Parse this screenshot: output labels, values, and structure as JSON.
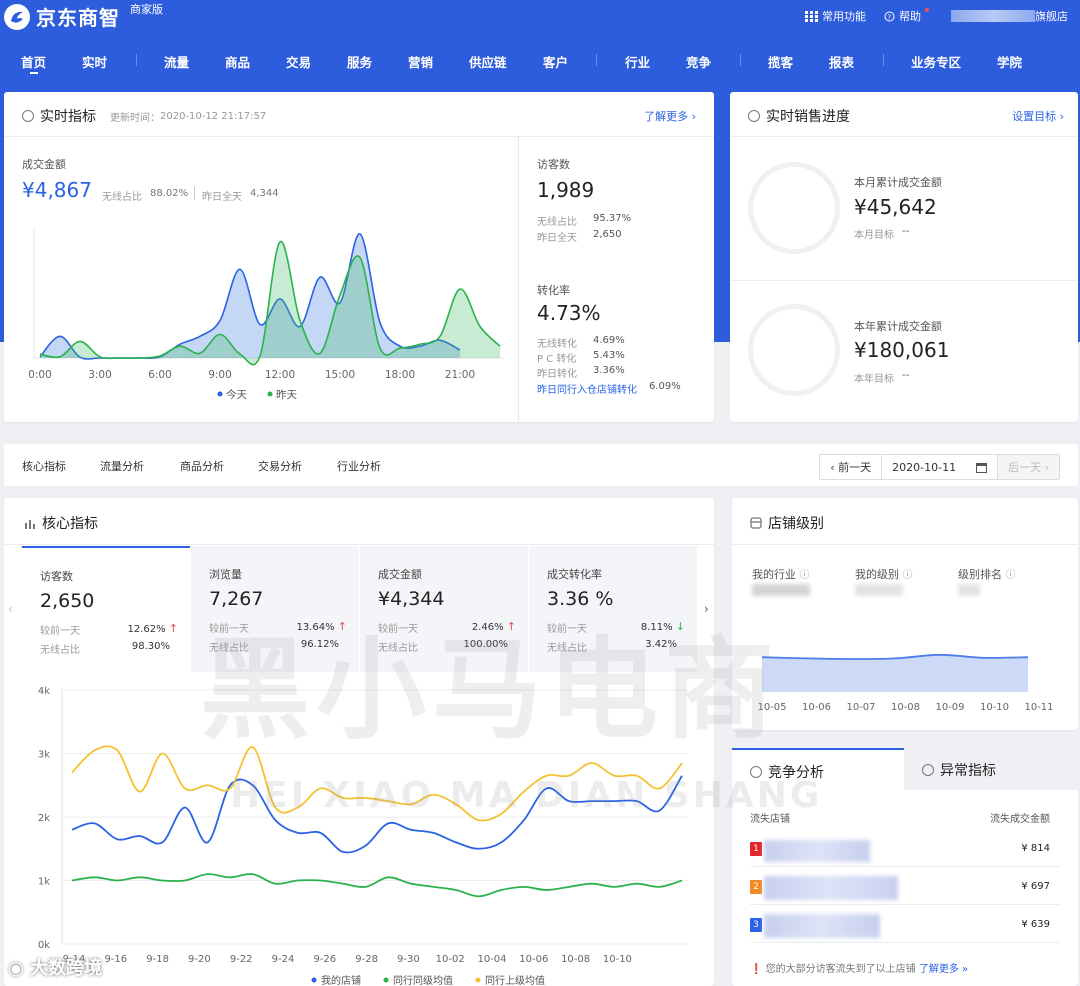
{
  "header": {
    "logo_text": "京东商智",
    "logo_sub": "商家版",
    "common_functions": "常用功能",
    "help": "帮助",
    "shop_suffix": "旗舰店"
  },
  "nav": {
    "items": [
      "首页",
      "实时",
      "流量",
      "商品",
      "交易",
      "服务",
      "营销",
      "供应链",
      "客户",
      "行业",
      "竞争",
      "揽客",
      "报表",
      "业务专区",
      "学院"
    ],
    "active": "首页"
  },
  "realtime": {
    "title": "实时指标",
    "update_label": "更新时间：",
    "update_time": "2020-10-12 21:17:57",
    "more": "了解更多 ›",
    "gmv_label": "成交金额",
    "gmv_value": "¥4,867",
    "wireless_ratio_label": "无线占比",
    "wireless_ratio": "88.02%",
    "yesterday_label": "昨日全天",
    "yesterday": "4,344",
    "visitors_label": "访客数",
    "visitors_value": "1,989",
    "v_wireless_label": "无线占比",
    "v_wireless": "95.37%",
    "v_yesterday_label": "昨日全天",
    "v_yesterday": "2,650",
    "conv_label": "转化率",
    "conv_value": "4.73%",
    "c_wireless_label": "无线转化",
    "c_wireless": "4.69%",
    "c_pc_label": "P C 转化",
    "c_pc": "5.43%",
    "c_yesterday_label": "昨日转化",
    "c_yesterday": "3.36%",
    "c_industry_label": "昨日同行入仓店铺转化",
    "c_industry": "6.09%"
  },
  "sales_progress": {
    "title": "实时销售进度",
    "set_target": "设置目标 ›",
    "month_label": "本月累计成交金额",
    "month_value": "¥45,642",
    "month_target_label": "本月目标",
    "month_target": "--",
    "year_label": "本年累计成交金额",
    "year_value": "¥180,061",
    "year_target_label": "本年目标",
    "year_target": "--"
  },
  "tabs": {
    "items": [
      "核心指标",
      "流量分析",
      "商品分析",
      "交易分析",
      "行业分析"
    ],
    "prev_day": "‹ 前一天",
    "date": "2020-10-11",
    "next_day": "后一天 ›"
  },
  "core": {
    "title": "核心指标",
    "kpis": [
      {
        "label": "访客数",
        "value": "2,650",
        "r1_label": "较前一天",
        "r1": "12.62%",
        "dir": "up",
        "r2_label": "无线占比",
        "r2": "98.30%"
      },
      {
        "label": "浏览量",
        "value": "7,267",
        "r1_label": "较前一天",
        "r1": "13.64%",
        "dir": "up",
        "r2_label": "无线占比",
        "r2": "96.12%"
      },
      {
        "label": "成交金额",
        "value": "¥4,344",
        "r1_label": "较前一天",
        "r1": "2.46%",
        "dir": "up",
        "r2_label": "无线占比",
        "r2": "100.00%"
      },
      {
        "label": "成交转化率",
        "value": "3.36 %",
        "r1_label": "较前一天",
        "r1": "8.11%",
        "dir": "down",
        "r2_label": "无线占比",
        "r2": "3.42%"
      }
    ]
  },
  "shop_level": {
    "title": "店铺级别",
    "industry_label": "我的行业",
    "level_label": "我的级别",
    "rank_label": "级别排名"
  },
  "competition": {
    "tab_active": "竞争分析",
    "tab_other": "异常指标",
    "col_shop": "流失店铺",
    "col_amount": "流失成交金额",
    "rows": [
      {
        "rank": "1",
        "amount": "¥ 814",
        "color": "#e5242b"
      },
      {
        "rank": "2",
        "amount": "¥ 697",
        "color": "#f08a24"
      },
      {
        "rank": "3",
        "amount": "¥ 639",
        "color": "#2a62e6"
      }
    ],
    "footer": "您的大部分访客流失到了以上店铺",
    "footer_link": "了解更多 »"
  },
  "watermark": {
    "cn": "黑小马电商",
    "en": "HEI XIAO MA DIAN SHANG",
    "corner": "大数跨境"
  },
  "chart_data": [
    {
      "type": "area",
      "x_labels": [
        "0:00",
        "3:00",
        "6:00",
        "9:00",
        "12:00",
        "15:00",
        "18:00",
        "21:00"
      ],
      "xlim": [
        0,
        23
      ],
      "series": [
        {
          "name": "今天",
          "color": "#2a62e6",
          "x": [
            0,
            1,
            2,
            3,
            4,
            5,
            6,
            7,
            8,
            9,
            10,
            11,
            12,
            13,
            14,
            15,
            16,
            17,
            18,
            19,
            20,
            21
          ],
          "values": [
            3,
            55,
            2,
            0,
            0,
            0,
            3,
            35,
            55,
            95,
            225,
            85,
            150,
            80,
            205,
            140,
            315,
            90,
            30,
            30,
            45,
            20
          ]
        },
        {
          "name": "昨天",
          "color": "#2bb24c",
          "x": [
            0,
            1,
            2,
            3,
            4,
            5,
            6,
            7,
            8,
            9,
            10,
            11,
            12,
            13,
            14,
            15,
            16,
            17,
            18,
            19,
            20,
            21,
            22,
            23
          ],
          "values": [
            10,
            3,
            42,
            3,
            0,
            0,
            5,
            30,
            12,
            60,
            10,
            5,
            295,
            95,
            12,
            160,
            255,
            25,
            25,
            35,
            55,
            175,
            80,
            30
          ]
        }
      ]
    },
    {
      "type": "line",
      "y_ticks": [
        "0k",
        "1k",
        "2k",
        "3k",
        "4k"
      ],
      "ylim": [
        0,
        4000
      ],
      "x_labels": [
        "9-14",
        "9-16",
        "9-18",
        "9-20",
        "9-22",
        "9-24",
        "9-26",
        "9-28",
        "9-30",
        "10-02",
        "10-04",
        "10-06",
        "10-08",
        "10-10"
      ],
      "series": [
        {
          "name": "我的店铺",
          "color": "#2a62e6",
          "values": [
            1800,
            1900,
            1650,
            1700,
            1600,
            2150,
            1600,
            2500,
            2500,
            1950,
            1750,
            1750,
            1450,
            1550,
            1900,
            1800,
            1750,
            1600,
            1500,
            1600,
            1950,
            2450,
            2250,
            2250,
            2250,
            2250,
            2100,
            2650
          ]
        },
        {
          "name": "同行同级均值",
          "color": "#2bb24c",
          "values": [
            1000,
            1050,
            1000,
            1050,
            1000,
            1000,
            1100,
            1050,
            1100,
            950,
            1000,
            1000,
            950,
            900,
            1050,
            950,
            900,
            850,
            750,
            850,
            900,
            850,
            900,
            950,
            900,
            950,
            900,
            1000
          ]
        },
        {
          "name": "同行上级均值",
          "color": "#f6c130",
          "values": [
            2700,
            3050,
            3050,
            2400,
            3000,
            2450,
            2500,
            2450,
            3100,
            2150,
            2150,
            2450,
            2300,
            2300,
            2250,
            2200,
            2350,
            2200,
            1950,
            2050,
            2400,
            2650,
            2650,
            2850,
            2650,
            2650,
            2450,
            2850
          ]
        }
      ]
    },
    {
      "type": "area",
      "x_labels": [
        "10-05",
        "10-06",
        "10-07",
        "10-08",
        "10-09",
        "10-10",
        "10-11"
      ],
      "ylim": [
        0,
        100
      ],
      "series": [
        {
          "color": "#4f7de8",
          "values": [
            58,
            56,
            55,
            56,
            62,
            57,
            58
          ]
        }
      ]
    }
  ]
}
